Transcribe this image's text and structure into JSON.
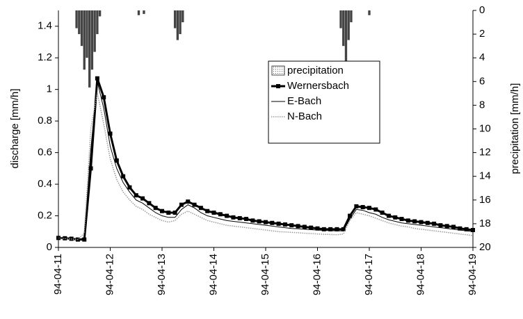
{
  "chart_data": {
    "type": "hydrograph",
    "ylabel": "discharge [mm/h]",
    "y2label": "precipitation [mm/h]",
    "xlim": [
      11,
      19
    ],
    "xticks": [
      {
        "value": 11,
        "label": "94-04-11"
      },
      {
        "value": 12,
        "label": "94-04-12"
      },
      {
        "value": 13,
        "label": "94-04-13"
      },
      {
        "value": 14,
        "label": "94-04-14"
      },
      {
        "value": 15,
        "label": "94-04-15"
      },
      {
        "value": 16,
        "label": "94-04-16"
      },
      {
        "value": 17,
        "label": "94-04-17"
      },
      {
        "value": 18,
        "label": "94-04-18"
      },
      {
        "value": 19,
        "label": "94-04-19"
      }
    ],
    "ylim": [
      0,
      1.5
    ],
    "yticks": [
      0,
      0.2,
      0.4,
      0.6,
      0.8,
      1,
      1.2,
      1.4
    ],
    "y2lim": [
      20,
      0
    ],
    "y2ticks": [
      0,
      2,
      4,
      6,
      8,
      10,
      12,
      14,
      16,
      18,
      20
    ],
    "legend": "center",
    "x": [
      11,
      11.125,
      11.25,
      11.375,
      11.5,
      11.625,
      11.75,
      11.875,
      12,
      12.125,
      12.25,
      12.375,
      12.5,
      12.625,
      12.75,
      12.875,
      13,
      13.125,
      13.25,
      13.375,
      13.5,
      13.625,
      13.75,
      13.875,
      14,
      14.125,
      14.25,
      14.375,
      14.5,
      14.625,
      14.75,
      14.875,
      15,
      15.125,
      15.25,
      15.375,
      15.5,
      15.625,
      15.75,
      15.875,
      16,
      16.125,
      16.25,
      16.375,
      16.5,
      16.625,
      16.75,
      16.875,
      17,
      17.125,
      17.25,
      17.375,
      17.5,
      17.625,
      17.75,
      17.875,
      18,
      18.125,
      18.25,
      18.375,
      18.5,
      18.625,
      18.75,
      18.875,
      19
    ],
    "precipitation": {
      "name": "precipitation",
      "color": "#444444",
      "axis": "y2",
      "x": [
        11.35,
        11.4,
        11.45,
        11.5,
        11.55,
        11.6,
        11.65,
        11.7,
        11.75,
        11.8,
        12.55,
        12.65,
        13.25,
        13.3,
        13.35,
        13.4,
        16.45,
        16.5,
        16.55,
        16.6,
        16.65,
        17.0
      ],
      "values": [
        1.5,
        2,
        3,
        5,
        4,
        6.5,
        5,
        3.5,
        2,
        0.5,
        0.4,
        0.3,
        1.5,
        2.5,
        2,
        1,
        1.5,
        3,
        4.5,
        2.5,
        1,
        0.4
      ]
    },
    "series": [
      {
        "name": "Wernersbach",
        "color": "#000000",
        "width": 3,
        "marker": "square",
        "values": [
          0.06,
          0.058,
          0.055,
          0.05,
          0.05,
          0.5,
          1.07,
          0.95,
          0.72,
          0.55,
          0.45,
          0.38,
          0.33,
          0.31,
          0.28,
          0.25,
          0.23,
          0.22,
          0.22,
          0.27,
          0.29,
          0.27,
          0.25,
          0.23,
          0.22,
          0.21,
          0.2,
          0.19,
          0.185,
          0.18,
          0.17,
          0.165,
          0.16,
          0.155,
          0.15,
          0.145,
          0.14,
          0.135,
          0.13,
          0.125,
          0.12,
          0.115,
          0.115,
          0.115,
          0.115,
          0.2,
          0.26,
          0.255,
          0.25,
          0.24,
          0.22,
          0.2,
          0.19,
          0.18,
          0.17,
          0.165,
          0.16,
          0.155,
          0.15,
          0.14,
          0.135,
          0.13,
          0.12,
          0.115,
          0.11
        ]
      },
      {
        "name": "E-Bach",
        "color": "#000000",
        "width": 1,
        "marker": "none",
        "values": [
          0.06,
          0.057,
          0.054,
          0.05,
          0.06,
          0.62,
          1.05,
          0.88,
          0.64,
          0.5,
          0.41,
          0.35,
          0.3,
          0.28,
          0.25,
          0.22,
          0.2,
          0.19,
          0.19,
          0.24,
          0.27,
          0.25,
          0.22,
          0.2,
          0.19,
          0.18,
          0.17,
          0.165,
          0.16,
          0.155,
          0.15,
          0.145,
          0.14,
          0.135,
          0.13,
          0.125,
          0.12,
          0.118,
          0.115,
          0.112,
          0.11,
          0.108,
          0.106,
          0.105,
          0.105,
          0.18,
          0.24,
          0.235,
          0.22,
          0.21,
          0.19,
          0.175,
          0.165,
          0.155,
          0.15,
          0.145,
          0.14,
          0.135,
          0.13,
          0.125,
          0.12,
          0.115,
          0.11,
          0.105,
          0.1
        ]
      },
      {
        "name": "N-Bach",
        "color": "#999999",
        "width": 1.5,
        "marker": "none",
        "dash": true,
        "values": [
          0.06,
          0.056,
          0.053,
          0.05,
          0.09,
          0.75,
          0.98,
          0.78,
          0.56,
          0.43,
          0.35,
          0.3,
          0.26,
          0.24,
          0.21,
          0.19,
          0.17,
          0.16,
          0.17,
          0.21,
          0.23,
          0.21,
          0.19,
          0.17,
          0.16,
          0.15,
          0.14,
          0.135,
          0.13,
          0.125,
          0.12,
          0.115,
          0.11,
          0.105,
          0.1,
          0.098,
          0.095,
          0.093,
          0.09,
          0.088,
          0.085,
          0.083,
          0.082,
          0.08,
          0.085,
          0.17,
          0.22,
          0.21,
          0.2,
          0.185,
          0.17,
          0.155,
          0.145,
          0.135,
          0.13,
          0.12,
          0.115,
          0.11,
          0.105,
          0.1,
          0.095,
          0.09,
          0.085,
          0.08,
          0.075
        ]
      }
    ]
  }
}
